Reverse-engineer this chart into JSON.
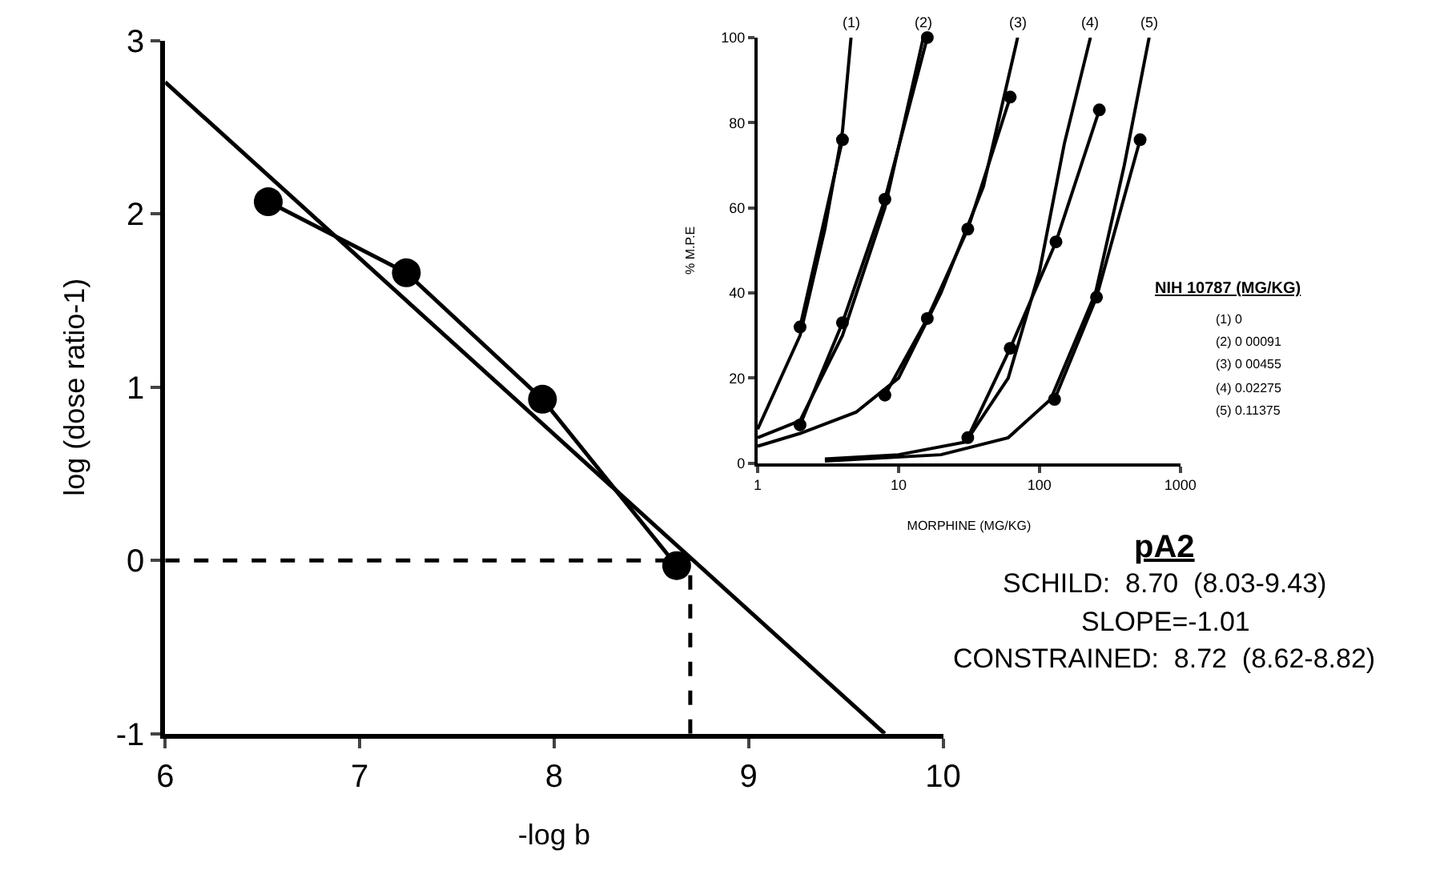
{
  "chart_data": [
    {
      "type": "scatter",
      "xlabel": "-log b",
      "ylabel": "log (dose ratio-1)",
      "xlim": [
        6,
        10
      ],
      "ylim": [
        -1,
        3
      ],
      "xticks": [
        6,
        7,
        8,
        9,
        10
      ],
      "yticks": [
        -1,
        0,
        1,
        2,
        3
      ],
      "grid": false,
      "series": [
        {
          "type": "line",
          "color": "#000000",
          "marker": "circle",
          "x": [
            6.53,
            7.24,
            7.94,
            8.63
          ],
          "values": [
            2.07,
            1.66,
            0.93,
            -0.03
          ]
        },
        {
          "type": "line",
          "color": "#000000",
          "marker": "none",
          "x": [
            6,
            9.7
          ],
          "values": [
            2.76,
            -1
          ]
        }
      ],
      "ref_lines": [
        {
          "axis": "y",
          "value": 0,
          "line_style": "dashed",
          "color": "#000000"
        },
        {
          "axis": "x",
          "value": 8.7,
          "line_style": "dashed",
          "color": "#000000"
        }
      ],
      "annotations": [
        "pA2",
        "SCHILD:  8.70  (8.03-9.43)",
        "SLOPE=-1.01",
        "CONSTRAINED:  8.72  (8.62-8.82)"
      ]
    },
    {
      "type": "line",
      "xlabel": "MORPHINE (MG/KG)",
      "ylabel": "% M.P.E",
      "log": "x",
      "xlim": [
        1,
        1000
      ],
      "ylim": [
        0,
        100
      ],
      "xticks": [
        1,
        10,
        100,
        1000
      ],
      "yticks": [
        0,
        20,
        40,
        60,
        80,
        100
      ],
      "grid": false,
      "series": [
        {
          "color": "#000000",
          "marker": "circle",
          "x": [
            2,
            4
          ],
          "values": [
            32,
            76
          ]
        },
        {
          "color": "#000000",
          "marker": "none",
          "x": [
            1,
            2,
            3,
            4,
            4.6
          ],
          "values": [
            8,
            30,
            55,
            78,
            100
          ]
        },
        {
          "color": "#000000",
          "marker": "circle",
          "x": [
            2,
            4,
            8,
            16
          ],
          "values": [
            9,
            33,
            62,
            100
          ]
        },
        {
          "color": "#000000",
          "marker": "none",
          "x": [
            1,
            2,
            4,
            8,
            15
          ],
          "values": [
            6,
            10,
            30,
            60,
            100
          ]
        },
        {
          "color": "#000000",
          "marker": "circle",
          "x": [
            8,
            16,
            31,
            62
          ],
          "values": [
            16,
            34,
            55,
            86
          ]
        },
        {
          "color": "#000000",
          "marker": "none",
          "x": [
            1,
            2,
            5,
            10,
            20,
            40,
            70
          ],
          "values": [
            4,
            7,
            12,
            20,
            40,
            65,
            100
          ]
        },
        {
          "color": "#000000",
          "marker": "circle",
          "x": [
            31,
            62,
            131,
            266
          ],
          "values": [
            6,
            27,
            52,
            83
          ]
        },
        {
          "color": "#000000",
          "marker": "none",
          "x": [
            3,
            10,
            30,
            60,
            100,
            150,
            230
          ],
          "values": [
            1,
            2,
            5,
            20,
            45,
            75,
            100
          ]
        },
        {
          "color": "#000000",
          "marker": "circle",
          "x": [
            128,
            254,
            518
          ],
          "values": [
            15,
            39,
            76
          ]
        },
        {
          "color": "#000000",
          "marker": "none",
          "x": [
            3,
            20,
            60,
            120,
            250,
            400,
            600
          ],
          "values": [
            0.5,
            2,
            6,
            15,
            40,
            70,
            100
          ]
        }
      ],
      "annotations": [
        {
          "text": "(1)",
          "x": 4.6,
          "y": 100
        },
        {
          "text": "(2)",
          "x": 15,
          "y": 100
        },
        {
          "text": "(3)",
          "x": 70,
          "y": 100
        },
        {
          "text": "(4)",
          "x": 230,
          "y": 100
        },
        {
          "text": "(5)",
          "x": 600,
          "y": 100
        },
        "NIH 10787 (MG/KG)",
        "(1) 0",
        "(2) 0 00091",
        "(3) 0 00455",
        "(4) 0.02275",
        "(5) 0.11375"
      ]
    }
  ]
}
